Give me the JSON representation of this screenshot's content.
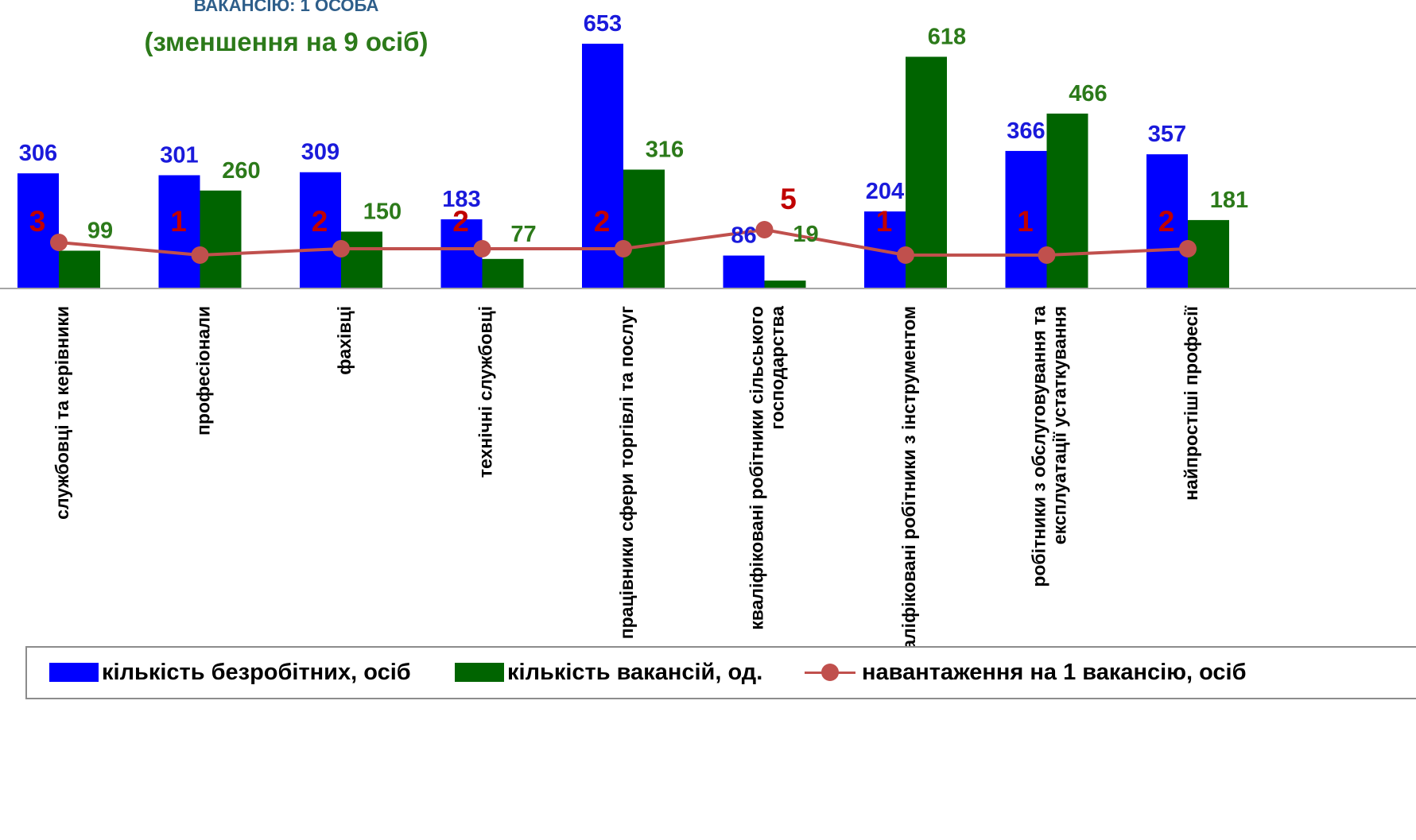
{
  "title": {
    "line1": "ВАКАНСІЮ: 1 ОСОБА",
    "line2": "(зменшення на 9 осіб)"
  },
  "colors": {
    "unemployed": "#0000ff",
    "vacancies": "#006400",
    "load": "#c0504d",
    "unemployed_label": "#1a1adb",
    "vacancies_label": "#2c7a1a",
    "load_label": "#c00000",
    "title_line1": "#2e5e8a",
    "title_line2": "#2c7a1a"
  },
  "chart_data": {
    "type": "bar",
    "categories": [
      [
        "службовці та керівники"
      ],
      [
        "професіонали"
      ],
      [
        "фахівці"
      ],
      [
        "технічні службовці"
      ],
      [
        "працівники сфери торгівлі та послуг"
      ],
      [
        "кваліфіковані робітники  сільського",
        "господарства"
      ],
      [
        "кваліфіковані робітники  з інструментом"
      ],
      [
        "робітники  з обслуговування  та",
        "експлуатації устаткування"
      ],
      [
        "найпростіші професії"
      ]
    ],
    "series": [
      {
        "name": "кількість безробітних, осіб",
        "type": "bar",
        "values": [
          306,
          301,
          309,
          183,
          653,
          86,
          204,
          366,
          357
        ]
      },
      {
        "name": "кількість вакансій, од.",
        "type": "bar",
        "values": [
          99,
          260,
          150,
          77,
          316,
          19,
          618,
          466,
          181
        ]
      },
      {
        "name": "навантаження на 1 вакансію, осіб",
        "type": "line",
        "values": [
          3,
          1,
          2,
          2,
          2,
          5,
          1,
          1,
          2
        ]
      }
    ],
    "ylim": [
      0,
      700
    ],
    "grid": false,
    "legend": "bottom"
  },
  "legend": {
    "unemployed": "кількість безробітних, осіб",
    "vacancies": "кількість вакансій, од.",
    "load": "навантаження на 1 вакансію, осіб"
  }
}
